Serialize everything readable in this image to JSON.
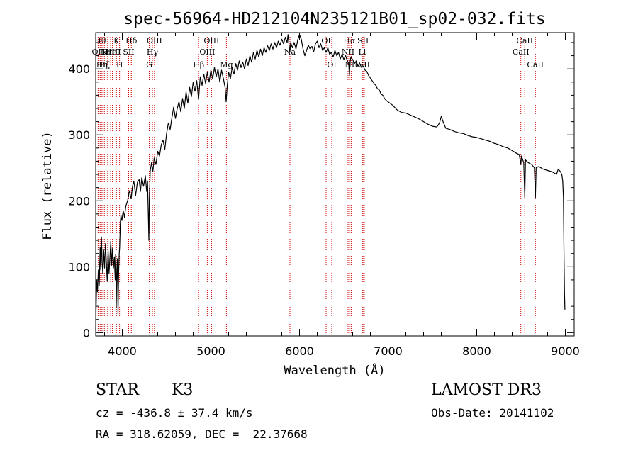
{
  "chart_data": {
    "type": "line",
    "title": "spec-56964-HD212104N235121B01_sp02-032.fits",
    "xlabel": "Wavelength (Å)",
    "ylabel": "Flux (relative)",
    "xlim": [
      3700,
      9100
    ],
    "ylim": [
      -5,
      455
    ],
    "xticks": [
      4000,
      5000,
      6000,
      7000,
      8000,
      9000
    ],
    "yticks": [
      0,
      100,
      200,
      300,
      400
    ],
    "series": [
      {
        "name": "flux",
        "points": [
          [
            3700,
            5
          ],
          [
            3705,
            40
          ],
          [
            3712,
            80
          ],
          [
            3720,
            62
          ],
          [
            3730,
            95
          ],
          [
            3740,
            72
          ],
          [
            3750,
            130
          ],
          [
            3758,
            95
          ],
          [
            3765,
            145
          ],
          [
            3772,
            110
          ],
          [
            3780,
            90
          ],
          [
            3790,
            125
          ],
          [
            3800,
            98
          ],
          [
            3810,
            135
          ],
          [
            3820,
            108
          ],
          [
            3830,
            78
          ],
          [
            3840,
            125
          ],
          [
            3850,
            90
          ],
          [
            3860,
            112
          ],
          [
            3870,
            138
          ],
          [
            3880,
            102
          ],
          [
            3890,
            128
          ],
          [
            3900,
            98
          ],
          [
            3910,
            115
          ],
          [
            3920,
            80
          ],
          [
            3925,
            118
          ],
          [
            3932,
            38
          ],
          [
            3938,
            95
          ],
          [
            3945,
            112
          ],
          [
            3952,
            28
          ],
          [
            3958,
            88
          ],
          [
            3965,
            118
          ],
          [
            3970,
            130
          ],
          [
            3978,
            168
          ],
          [
            3985,
            178
          ],
          [
            3995,
            170
          ],
          [
            4010,
            185
          ],
          [
            4025,
            175
          ],
          [
            4040,
            192
          ],
          [
            4060,
            200
          ],
          [
            4080,
            215
          ],
          [
            4100,
            203
          ],
          [
            4115,
            222
          ],
          [
            4130,
            230
          ],
          [
            4150,
            208
          ],
          [
            4170,
            228
          ],
          [
            4190,
            232
          ],
          [
            4205,
            214
          ],
          [
            4220,
            235
          ],
          [
            4240,
            222
          ],
          [
            4260,
            238
          ],
          [
            4275,
            214
          ],
          [
            4285,
            230
          ],
          [
            4295,
            170
          ],
          [
            4300,
            140
          ],
          [
            4305,
            200
          ],
          [
            4315,
            245
          ],
          [
            4330,
            258
          ],
          [
            4345,
            244
          ],
          [
            4360,
            265
          ],
          [
            4380,
            255
          ],
          [
            4400,
            275
          ],
          [
            4420,
            268
          ],
          [
            4440,
            285
          ],
          [
            4460,
            292
          ],
          [
            4480,
            278
          ],
          [
            4500,
            302
          ],
          [
            4520,
            318
          ],
          [
            4540,
            308
          ],
          [
            4560,
            326
          ],
          [
            4580,
            342
          ],
          [
            4600,
            325
          ],
          [
            4620,
            340
          ],
          [
            4640,
            350
          ],
          [
            4660,
            335
          ],
          [
            4680,
            355
          ],
          [
            4700,
            340
          ],
          [
            4720,
            365
          ],
          [
            4740,
            348
          ],
          [
            4760,
            372
          ],
          [
            4780,
            358
          ],
          [
            4800,
            380
          ],
          [
            4820,
            366
          ],
          [
            4840,
            382
          ],
          [
            4861,
            354
          ],
          [
            4880,
            388
          ],
          [
            4900,
            375
          ],
          [
            4920,
            392
          ],
          [
            4940,
            378
          ],
          [
            4960,
            395
          ],
          [
            4980,
            380
          ],
          [
            5000,
            398
          ],
          [
            5020,
            385
          ],
          [
            5040,
            402
          ],
          [
            5060,
            388
          ],
          [
            5080,
            400
          ],
          [
            5100,
            380
          ],
          [
            5120,
            398
          ],
          [
            5140,
            386
          ],
          [
            5160,
            372
          ],
          [
            5172,
            350
          ],
          [
            5185,
            375
          ],
          [
            5200,
            395
          ],
          [
            5220,
            385
          ],
          [
            5240,
            402
          ],
          [
            5260,
            392
          ],
          [
            5280,
            408
          ],
          [
            5300,
            398
          ],
          [
            5320,
            412
          ],
          [
            5340,
            402
          ],
          [
            5360,
            410
          ],
          [
            5380,
            400
          ],
          [
            5400,
            415
          ],
          [
            5420,
            405
          ],
          [
            5440,
            420
          ],
          [
            5460,
            410
          ],
          [
            5480,
            425
          ],
          [
            5500,
            415
          ],
          [
            5520,
            428
          ],
          [
            5540,
            418
          ],
          [
            5560,
            430
          ],
          [
            5580,
            420
          ],
          [
            5600,
            432
          ],
          [
            5620,
            425
          ],
          [
            5640,
            435
          ],
          [
            5660,
            428
          ],
          [
            5680,
            438
          ],
          [
            5700,
            430
          ],
          [
            5720,
            440
          ],
          [
            5740,
            432
          ],
          [
            5760,
            442
          ],
          [
            5780,
            436
          ],
          [
            5800,
            445
          ],
          [
            5820,
            438
          ],
          [
            5840,
            448
          ],
          [
            5860,
            440
          ],
          [
            5870,
            452
          ],
          [
            5880,
            438
          ],
          [
            5890,
            425
          ],
          [
            5900,
            440
          ],
          [
            5920,
            432
          ],
          [
            5940,
            440
          ],
          [
            5960,
            430
          ],
          [
            5980,
            444
          ],
          [
            6000,
            452
          ],
          [
            6020,
            445
          ],
          [
            6040,
            430
          ],
          [
            6060,
            420
          ],
          [
            6080,
            428
          ],
          [
            6100,
            436
          ],
          [
            6120,
            430
          ],
          [
            6140,
            434
          ],
          [
            6160,
            426
          ],
          [
            6180,
            438
          ],
          [
            6200,
            442
          ],
          [
            6220,
            432
          ],
          [
            6240,
            438
          ],
          [
            6260,
            428
          ],
          [
            6280,
            432
          ],
          [
            6300,
            425
          ],
          [
            6320,
            432
          ],
          [
            6340,
            422
          ],
          [
            6360,
            425
          ],
          [
            6380,
            418
          ],
          [
            6400,
            428
          ],
          [
            6420,
            420
          ],
          [
            6440,
            425
          ],
          [
            6460,
            415
          ],
          [
            6480,
            422
          ],
          [
            6500,
            414
          ],
          [
            6520,
            420
          ],
          [
            6540,
            412
          ],
          [
            6555,
            408
          ],
          [
            6563,
            390
          ],
          [
            6570,
            410
          ],
          [
            6580,
            418
          ],
          [
            6600,
            414
          ],
          [
            6620,
            408
          ],
          [
            6640,
            412
          ],
          [
            6660,
            404
          ],
          [
            6680,
            408
          ],
          [
            6700,
            402
          ],
          [
            6720,
            404
          ],
          [
            6740,
            398
          ],
          [
            6760,
            396
          ],
          [
            6780,
            390
          ],
          [
            6800,
            386
          ],
          [
            6820,
            382
          ],
          [
            6840,
            378
          ],
          [
            6860,
            375
          ],
          [
            6880,
            370
          ],
          [
            6900,
            368
          ],
          [
            6920,
            362
          ],
          [
            6940,
            360
          ],
          [
            6960,
            355
          ],
          [
            6980,
            352
          ],
          [
            7000,
            350
          ],
          [
            7050,
            345
          ],
          [
            7100,
            338
          ],
          [
            7150,
            334
          ],
          [
            7200,
            333
          ],
          [
            7250,
            330
          ],
          [
            7300,
            327
          ],
          [
            7350,
            324
          ],
          [
            7400,
            320
          ],
          [
            7450,
            316
          ],
          [
            7500,
            313
          ],
          [
            7550,
            312
          ],
          [
            7580,
            318
          ],
          [
            7600,
            328
          ],
          [
            7620,
            320
          ],
          [
            7650,
            310
          ],
          [
            7700,
            308
          ],
          [
            7750,
            305
          ],
          [
            7800,
            303
          ],
          [
            7850,
            302
          ],
          [
            7900,
            299
          ],
          [
            7950,
            297
          ],
          [
            8000,
            296
          ],
          [
            8050,
            294
          ],
          [
            8100,
            292
          ],
          [
            8150,
            290
          ],
          [
            8200,
            287
          ],
          [
            8250,
            285
          ],
          [
            8300,
            282
          ],
          [
            8350,
            280
          ],
          [
            8400,
            276
          ],
          [
            8450,
            272
          ],
          [
            8480,
            270
          ],
          [
            8498,
            255
          ],
          [
            8505,
            268
          ],
          [
            8530,
            258
          ],
          [
            8542,
            205
          ],
          [
            8550,
            262
          ],
          [
            8580,
            258
          ],
          [
            8620,
            255
          ],
          [
            8650,
            250
          ],
          [
            8662,
            205
          ],
          [
            8670,
            250
          ],
          [
            8700,
            252
          ],
          [
            8750,
            248
          ],
          [
            8800,
            246
          ],
          [
            8850,
            244
          ],
          [
            8900,
            240
          ],
          [
            8920,
            248
          ],
          [
            8940,
            245
          ],
          [
            8960,
            240
          ],
          [
            8970,
            230
          ],
          [
            8978,
            205
          ],
          [
            8985,
            120
          ],
          [
            8990,
            60
          ],
          [
            8995,
            35
          ]
        ]
      }
    ],
    "lines": [
      {
        "wl": 3727,
        "label": "OII",
        "row": 1
      },
      {
        "wl": 3750,
        "label": "Hθ",
        "row": 0
      },
      {
        "wl": 3771,
        "label": "Hη",
        "row": 2
      },
      {
        "wl": 3798,
        "label": "Hζ",
        "row": 2
      },
      {
        "wl": 3835,
        "label": "Hε",
        "row": 1
      },
      {
        "wl": 3869,
        "label": "NeIII",
        "row": 1
      },
      {
        "wl": 3889,
        "label": "HeI",
        "row": 1
      },
      {
        "wl": 3934,
        "label": "K",
        "row": 0
      },
      {
        "wl": 3969,
        "label": "H",
        "row": 2
      },
      {
        "wl": 4072,
        "label": "SII",
        "row": 1
      },
      {
        "wl": 4102,
        "label": "Hδ",
        "row": 0
      },
      {
        "wl": 4304,
        "label": "G",
        "row": 2
      },
      {
        "wl": 4340,
        "label": "Hγ",
        "row": 1
      },
      {
        "wl": 4363,
        "label": "OIII",
        "row": 0
      },
      {
        "wl": 4861,
        "label": "Hβ",
        "row": 2
      },
      {
        "wl": 4959,
        "label": "OIII",
        "row": 1
      },
      {
        "wl": 5007,
        "label": "OIII",
        "row": 0
      },
      {
        "wl": 5175,
        "label": "Mg",
        "row": 2
      },
      {
        "wl": 5892,
        "label": "Na",
        "row": 1
      },
      {
        "wl": 6300,
        "label": "OI",
        "row": 0
      },
      {
        "wl": 6364,
        "label": "OI",
        "row": 2
      },
      {
        "wl": 6548,
        "label": "NII",
        "row": 1
      },
      {
        "wl": 6563,
        "label": "Hα",
        "row": 0
      },
      {
        "wl": 6583,
        "label": "NII",
        "row": 2
      },
      {
        "wl": 6707,
        "label": "Li",
        "row": 1
      },
      {
        "wl": 6717,
        "label": "SII",
        "row": 0
      },
      {
        "wl": 6731,
        "label": "SII",
        "row": 2
      },
      {
        "wl": 8498,
        "label": "CaII",
        "row": 1
      },
      {
        "wl": 8542,
        "label": "CaII",
        "row": 0
      },
      {
        "wl": 8662,
        "label": "CaII",
        "row": 2
      }
    ]
  },
  "info": {
    "class": "STAR",
    "subclass": "K3",
    "survey": "LAMOST DR3",
    "cz": "cz = -436.8 ± 37.4 km/s",
    "obs_date": "Obs-Date: 20141102",
    "radec": "RA = 318.62059, DEC =  22.37668"
  },
  "colors": {
    "line_marker": "#cc0000",
    "spectrum": "#000000"
  }
}
